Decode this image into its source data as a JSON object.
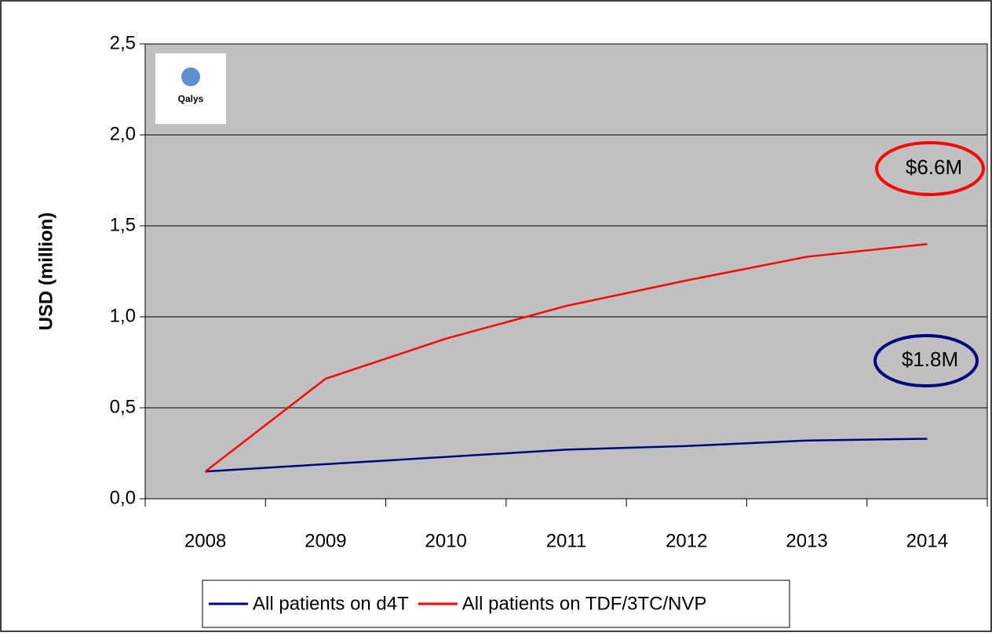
{
  "chart_data": {
    "type": "line",
    "y_label": "USD (million)",
    "logo": "Qalys",
    "categories": [
      "2008",
      "2009",
      "2010",
      "2011",
      "2012",
      "2013",
      "2014"
    ],
    "series": [
      {
        "name": "All patients on d4T",
        "color": "#000080",
        "values": [
          0.15,
          0.19,
          0.23,
          0.27,
          0.29,
          0.32,
          0.33
        ]
      },
      {
        "name": "All patients on TDF/3TC/NVP",
        "color": "#ff0000",
        "values": [
          0.15,
          0.66,
          0.88,
          1.06,
          1.2,
          1.33,
          1.4
        ]
      }
    ],
    "annotations": [
      {
        "text": "$6.6M",
        "color": "#ff0000"
      },
      {
        "text": "$1.8M",
        "color": "#000080"
      }
    ],
    "ylim": [
      0,
      2.5
    ],
    "yticks": [
      {
        "value": 0,
        "label": "0,0"
      },
      {
        "value": 0.5,
        "label": "0,5"
      },
      {
        "value": 1,
        "label": "1,0"
      },
      {
        "value": 1.5,
        "label": "1,5"
      },
      {
        "value": 2,
        "label": "2,0"
      },
      {
        "value": 2.5,
        "label": "2,5"
      }
    ],
    "grid": true,
    "plot_background": "#c0c0c0",
    "legend": "bottom"
  }
}
